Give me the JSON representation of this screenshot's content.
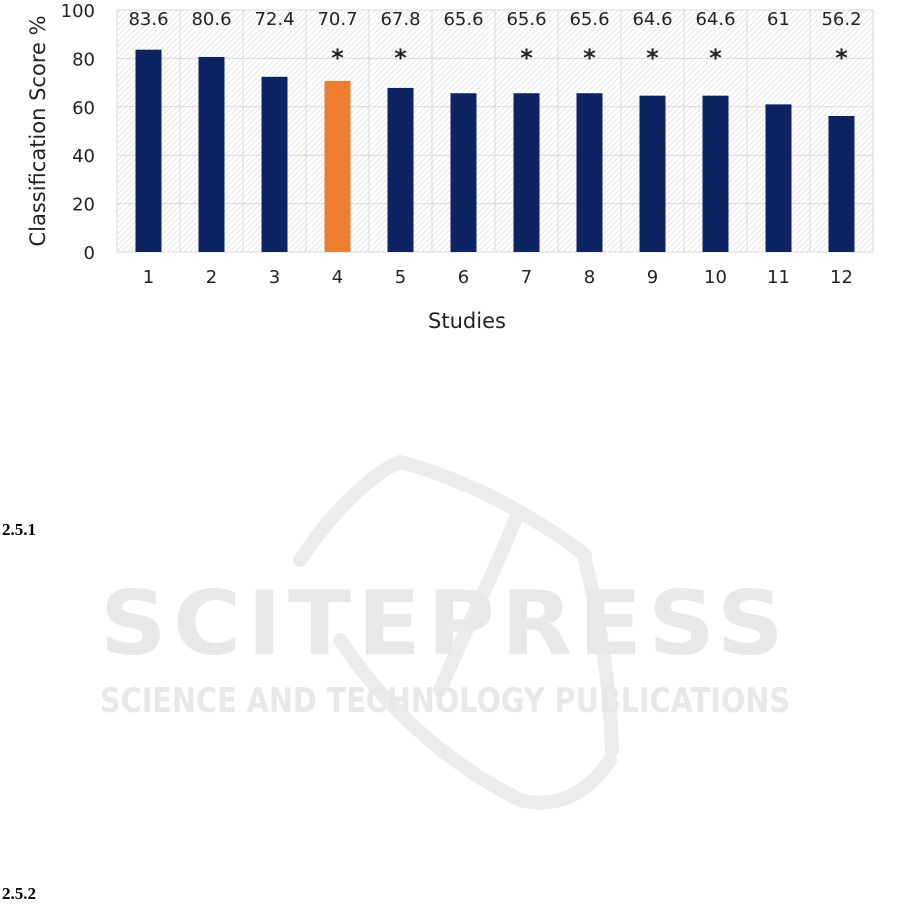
{
  "chart_data": {
    "type": "bar",
    "title": "",
    "xlabel": "Studies",
    "ylabel": "Classification Score %",
    "ylim": [
      0,
      100
    ],
    "yticks": [
      0,
      20,
      40,
      60,
      80,
      100
    ],
    "grid": true,
    "legend": "none",
    "categories": [
      "1",
      "2",
      "3",
      "4",
      "5",
      "6",
      "7",
      "8",
      "9",
      "10",
      "11",
      "12"
    ],
    "values": [
      83.6,
      80.6,
      72.4,
      70.7,
      67.8,
      65.6,
      65.6,
      65.6,
      64.6,
      64.6,
      61,
      56.2
    ],
    "value_labels": [
      "83.6",
      "80.6",
      "72.4",
      "70.7",
      "67.8",
      "65.6",
      "65.6",
      "65.6",
      "64.6",
      "64.6",
      "61",
      "56.2"
    ],
    "highlight_index": 3,
    "significance_markers": [
      "",
      "",
      "",
      "*",
      "*",
      "",
      "*",
      "*",
      "*",
      "*",
      "",
      "*"
    ],
    "colors": {
      "bar": "#0d2260",
      "highlight": "#ed7d31",
      "grid": "#d9d9d9"
    }
  },
  "sections": [
    {
      "label": "2.5.1"
    },
    {
      "label": "2.5.2"
    }
  ],
  "watermark": {
    "brand": "SCITEPRESS",
    "tagline": "SCIENCE AND TECHNOLOGY PUBLICATIONS"
  }
}
